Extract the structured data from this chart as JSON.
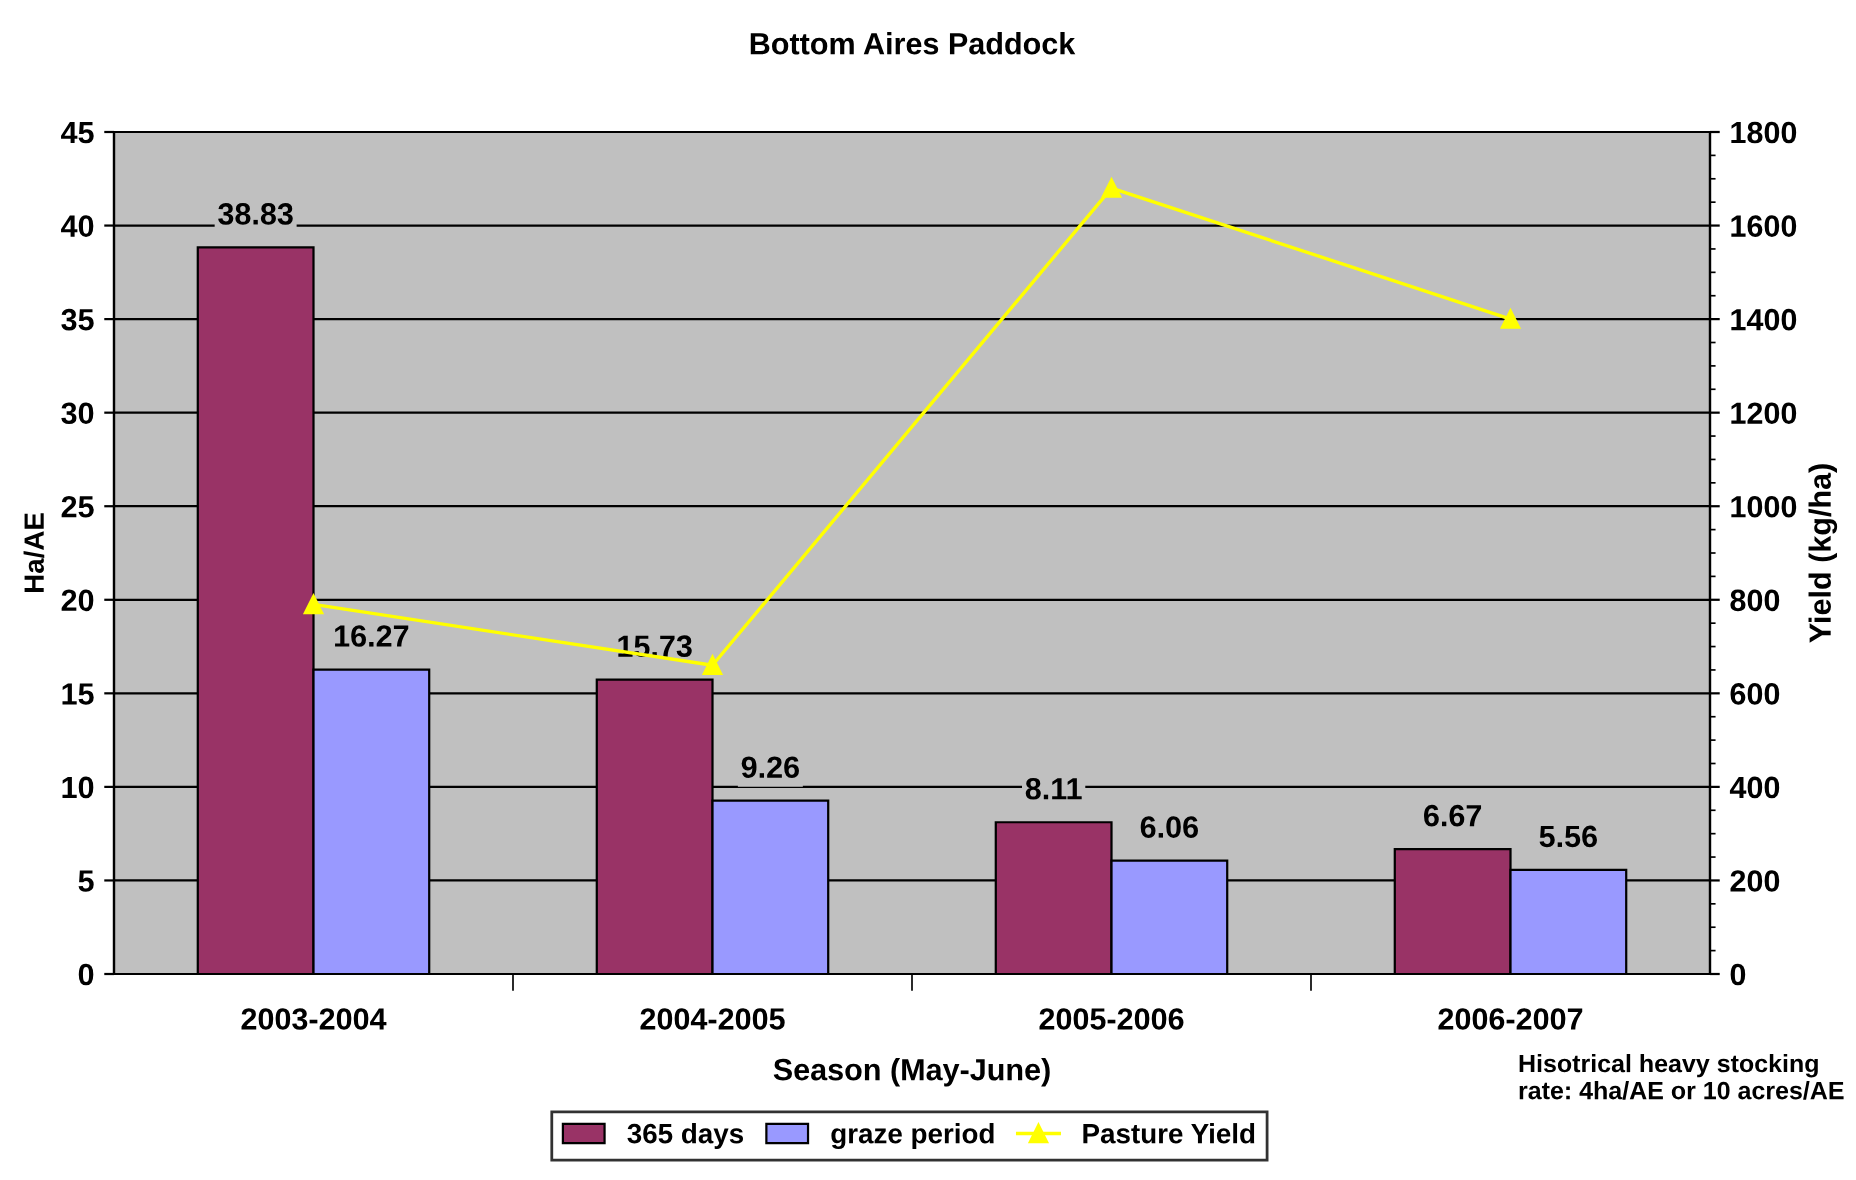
{
  "chart_data": {
    "type": "bar",
    "title": "Bottom Aires Paddock",
    "xlabel": "Season (May-June)",
    "ylabel": "Ha/AE",
    "y2label": "Yield (kg/ha)",
    "categories": [
      "2003-2004",
      "2004-2005",
      "2005-2006",
      "2006-2007"
    ],
    "series": [
      {
        "name": "365 days",
        "color": "#993366",
        "values": [
          38.83,
          15.73,
          8.11,
          6.67
        ],
        "value_labels": [
          "38.83",
          "15.73",
          "8.11",
          "6.67"
        ]
      },
      {
        "name": "graze period",
        "color": "#9999ff",
        "values": [
          16.27,
          9.26,
          6.06,
          5.56
        ],
        "value_labels": [
          "16.27",
          "9.26",
          "6.06",
          "5.56"
        ]
      },
      {
        "name": "Pasture Yield",
        "type": "line",
        "axis": "y2",
        "color": "#ffff00",
        "marker": "triangle",
        "values": [
          790,
          660,
          1680,
          1400
        ]
      }
    ],
    "ylim": [
      0,
      45
    ],
    "yticks": [
      0,
      5,
      10,
      15,
      20,
      25,
      30,
      35,
      40,
      45
    ],
    "y2lim": [
      0,
      1800
    ],
    "y2ticks": [
      0,
      200,
      400,
      600,
      800,
      1000,
      1200,
      1400,
      1600,
      1800
    ],
    "grid": "y",
    "legend": "bottom",
    "annotations": [
      "Hisotrical heavy stocking rate: 4ha/AE or 10 acres/AE"
    ]
  }
}
